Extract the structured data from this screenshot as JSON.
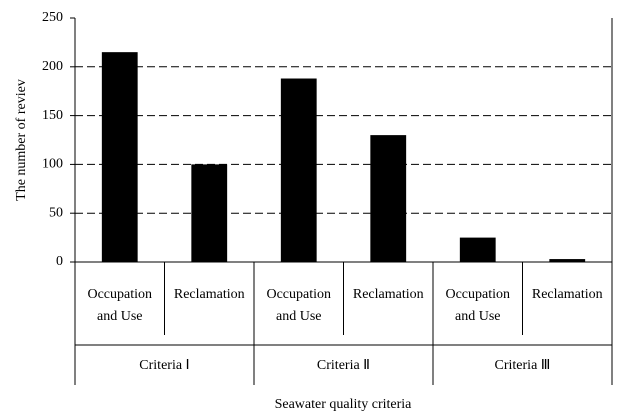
{
  "chart_data": {
    "type": "bar",
    "ylabel": "The number of reviev",
    "xlabel": "Seawater quality criteria",
    "categories": [
      "Occupation and Use",
      "Reclamation",
      "Occupation and Use",
      "Reclamation",
      "Occupation and Use",
      "Reclamation"
    ],
    "groups": [
      "Criteria Ⅰ",
      "Criteria Ⅱ",
      "Criteria Ⅲ"
    ],
    "values": [
      215,
      100,
      188,
      130,
      25,
      3
    ],
    "color": "#000000",
    "ylim": [
      0,
      250
    ],
    "yticks": [
      0,
      50,
      100,
      150,
      200,
      250
    ],
    "grid": true
  }
}
